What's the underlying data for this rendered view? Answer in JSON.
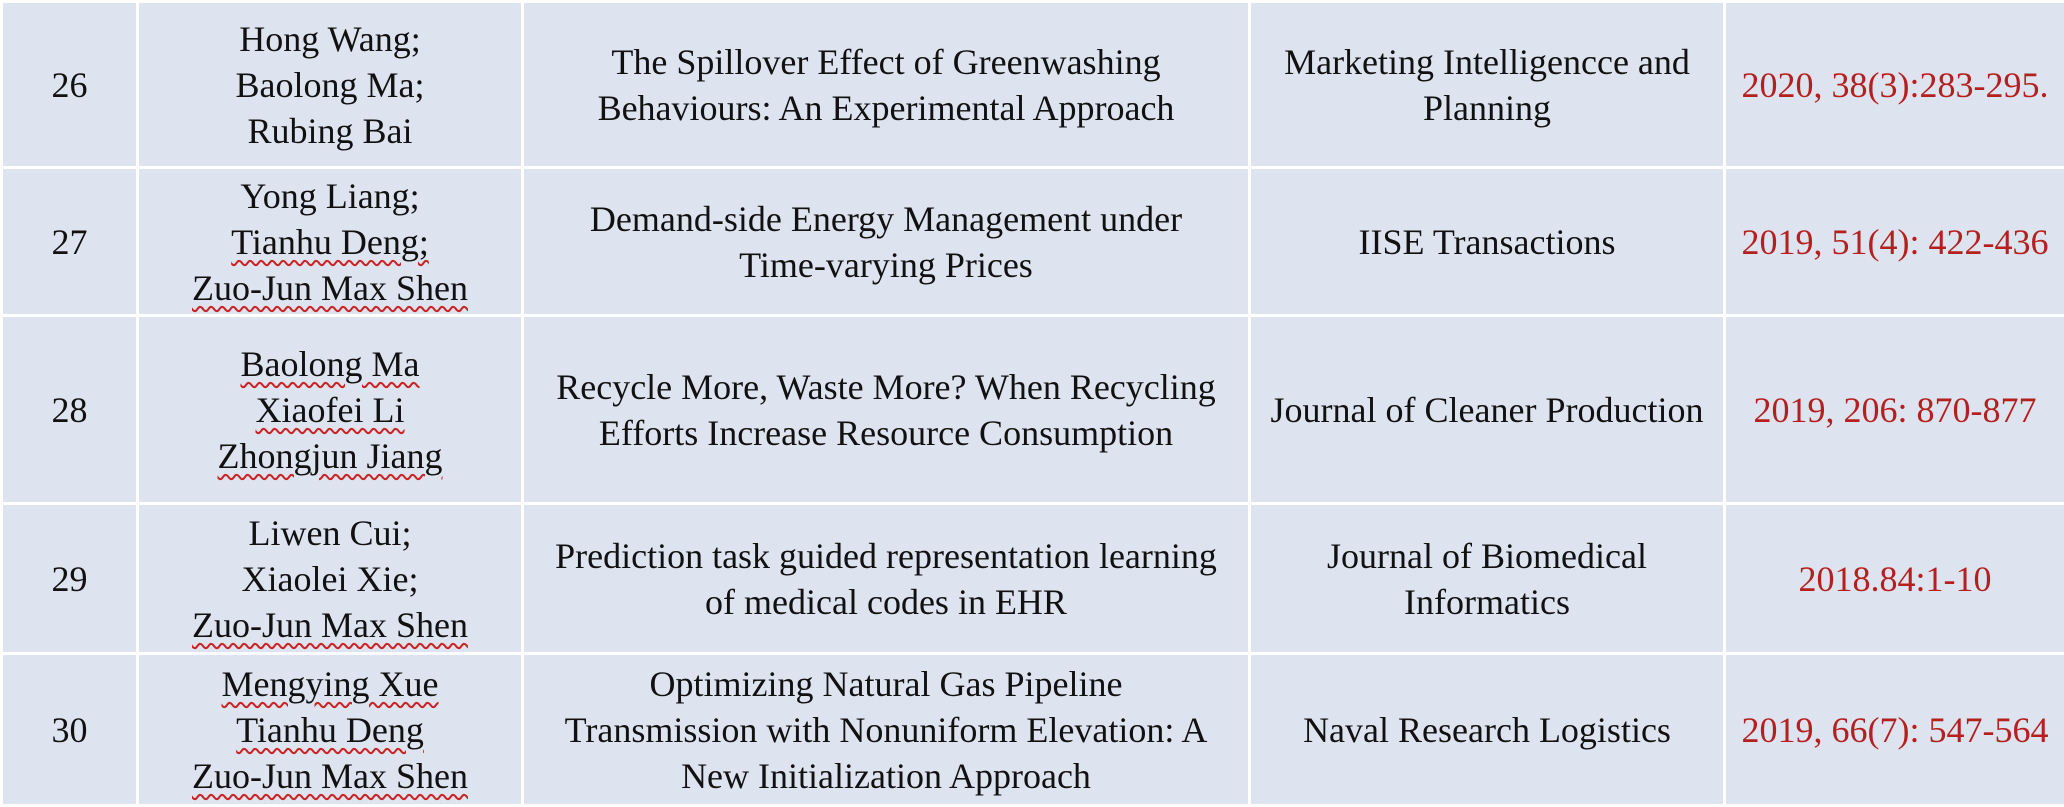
{
  "table": {
    "rows": [
      {
        "num": "26",
        "authors": [
          "Hong Wang;",
          "Baolong Ma;",
          "Rubing Bai"
        ],
        "title": [
          "The Spillover Effect of Greenwashing",
          "Behaviours: An Experimental Approach"
        ],
        "journal": [
          "Marketing Intelligencce and",
          "Planning"
        ],
        "ref": "2020, 38(3):283-295."
      },
      {
        "num": "27",
        "authors": [
          "Yong Liang;",
          "Tianhu Deng;",
          "Zuo-Jun Max Shen"
        ],
        "title": [
          "Demand-side Energy Management under",
          "Time-varying Prices"
        ],
        "journal": [
          "IISE Transactions"
        ],
        "ref": "2019, 51(4): 422-436"
      },
      {
        "num": "28",
        "authors": [
          "Baolong Ma",
          "Xiaofei Li",
          "Zhongjun Jiang"
        ],
        "title": [
          "Recycle More, Waste More? When Recycling",
          "Efforts Increase Resource Consumption"
        ],
        "journal": [
          "Journal of Cleaner Production"
        ],
        "ref": "2019, 206: 870-877"
      },
      {
        "num": "29",
        "authors": [
          "Liwen Cui;",
          "Xiaolei Xie;",
          "Zuo-Jun Max Shen"
        ],
        "title": [
          "Prediction task guided representation learning",
          "of medical codes in EHR"
        ],
        "journal": [
          "Journal of Biomedical",
          "Informatics"
        ],
        "ref": "2018.84:1-10"
      },
      {
        "num": "30",
        "authors": [
          "Mengying Xue",
          "Tianhu Deng",
          "Zuo-Jun Max Shen"
        ],
        "title": [
          "Optimizing Natural Gas Pipeline",
          "Transmission with Nonuniform Elevation: A",
          "New Initialization Approach"
        ],
        "journal": [
          "Naval Research Logistics"
        ],
        "ref": "2019, 66(7): 547-564"
      }
    ]
  }
}
